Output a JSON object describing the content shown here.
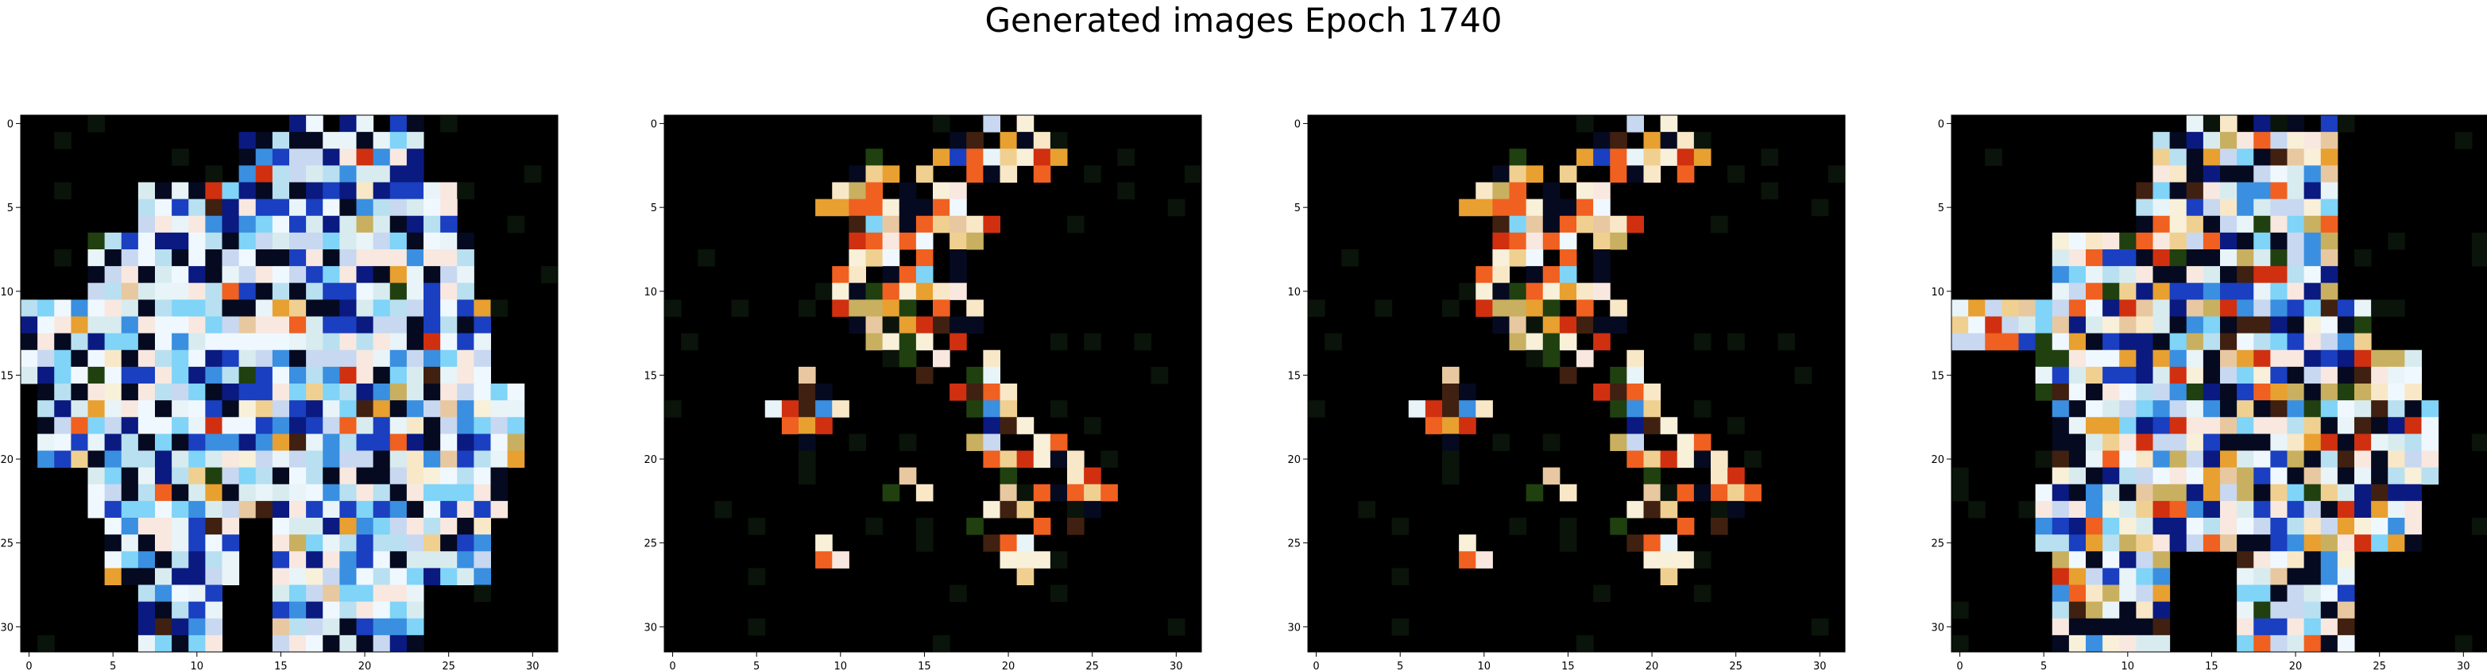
{
  "title": "Generated images Epoch 1740",
  "panels": [
    {
      "name": "generated-image-1",
      "blob": "a"
    },
    {
      "name": "generated-image-2",
      "blob": "b"
    },
    {
      "name": "generated-image-3",
      "blob": "b"
    },
    {
      "name": "generated-image-4",
      "blob": "c"
    }
  ],
  "axes": {
    "x_ticks": [
      0,
      5,
      10,
      15,
      20,
      25,
      30
    ],
    "y_ticks": [
      0,
      5,
      10,
      15,
      20,
      25,
      30
    ],
    "grid_size": 32
  },
  "colors": {
    "background": "#ffffff",
    "image_background": "#000000",
    "palette_cool": [
      "#e8f4f8",
      "#f0f8ff",
      "#d8ecf0",
      "#b8e0f0",
      "#7fd4f8",
      "#3a8fe0",
      "#1a3fc0",
      "#0a1a80",
      "#c8d8f0",
      "#f8e8e0"
    ],
    "palette_warm": [
      "#f8e8c8",
      "#f0d090",
      "#e8a030",
      "#f06020",
      "#d03010",
      "#f8f0d8",
      "#e8c8a0",
      "#c8b060",
      "#204010",
      "#402010"
    ]
  }
}
